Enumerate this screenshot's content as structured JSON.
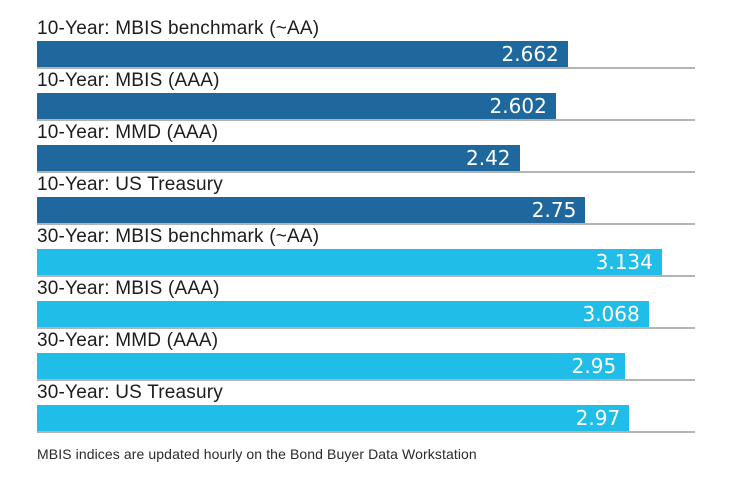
{
  "chart_data": {
    "type": "bar",
    "orientation": "horizontal",
    "title": "",
    "axis_max": 3.3,
    "grid": "per-row underline",
    "legend": "none",
    "colors": {
      "ten_year": "#1e689e",
      "thirty_year": "#20bde9",
      "gridline": "#b3b3b3",
      "value_text": "#ffffff",
      "label_text": "#1c1c1c"
    },
    "rows": [
      {
        "label": "10-Year: MBIS benchmark (~AA)",
        "value": 2.662,
        "value_label": "2.662",
        "group": "ten_year"
      },
      {
        "label": "10-Year: MBIS (AAA)",
        "value": 2.602,
        "value_label": "2.602",
        "group": "ten_year"
      },
      {
        "label": "10-Year: MMD (AAA)",
        "value": 2.42,
        "value_label": "2.42",
        "group": "ten_year"
      },
      {
        "label": "10-Year: US Treasury",
        "value": 2.75,
        "value_label": "2.75",
        "group": "ten_year"
      },
      {
        "label": "30-Year: MBIS benchmark (~AA)",
        "value": 3.134,
        "value_label": "3.134",
        "group": "thirty_year"
      },
      {
        "label": "30-Year: MBIS (AAA)",
        "value": 3.068,
        "value_label": "3.068",
        "group": "thirty_year"
      },
      {
        "label": "30-Year: MMD (AAA)",
        "value": 2.95,
        "value_label": "2.95",
        "group": "thirty_year"
      },
      {
        "label": "30-Year: US Treasury",
        "value": 2.97,
        "value_label": "2.97",
        "group": "thirty_year"
      }
    ],
    "footnote": "MBIS indices are updated hourly on the Bond Buyer Data Workstation"
  }
}
